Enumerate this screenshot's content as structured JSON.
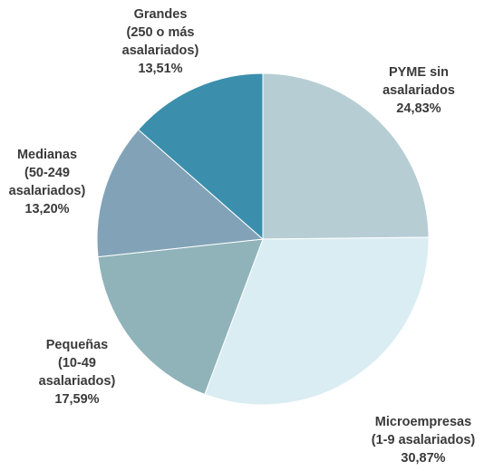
{
  "chart_data": {
    "type": "pie",
    "start_angle_deg": 0,
    "direction": "clockwise",
    "legend": "none",
    "slices": [
      {
        "label_lines": [
          "PYME sin",
          "asalariados"
        ],
        "value_label": "24,83%",
        "value": 24.83,
        "color": "#b6cdd4"
      },
      {
        "label_lines": [
          "Microempresas",
          "(1-9 asalariados)"
        ],
        "value_label": "30,87%",
        "value": 30.87,
        "color": "#daedf3"
      },
      {
        "label_lines": [
          "Pequeñas",
          "(10-49",
          "asalariados)"
        ],
        "value_label": "17,59%",
        "value": 17.59,
        "color": "#8fb3b9"
      },
      {
        "label_lines": [
          "Medianas",
          "(50-249",
          "asalariados)"
        ],
        "value_label": "13,20%",
        "value": 13.2,
        "color": "#82a3b7"
      },
      {
        "label_lines": [
          "Grandes",
          "(250 o más",
          "asalariados)"
        ],
        "value_label": "13,51%",
        "value": 13.51,
        "color": "#3b8fac"
      }
    ]
  }
}
